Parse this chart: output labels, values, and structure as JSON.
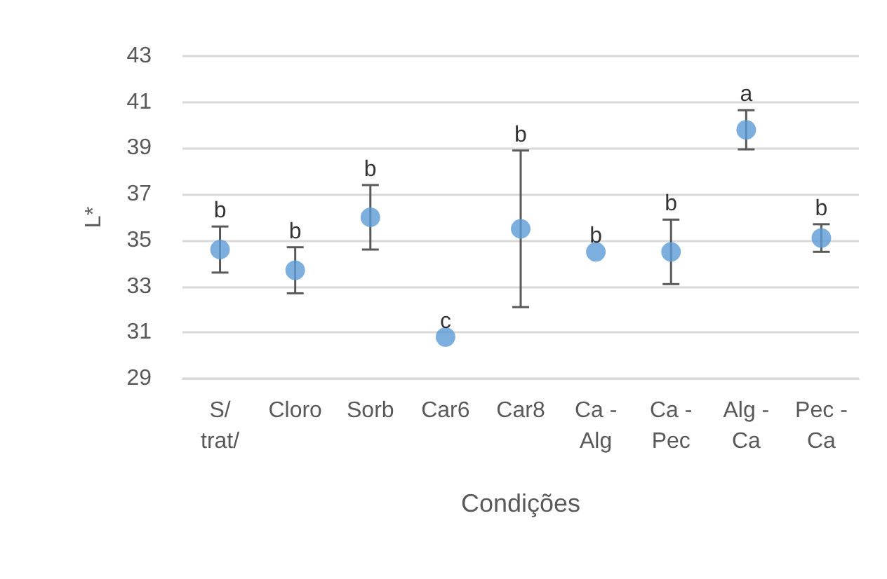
{
  "chart_data": {
    "type": "scatter",
    "xlabel": "Condições",
    "ylabel": "L*",
    "categories": [
      "S/ trat/",
      "Cloro",
      "Sorb",
      "Car6",
      "Car8",
      "Ca - Alg",
      "Ca - Pec",
      "Alg - Ca",
      "Pec - Ca"
    ],
    "values": [
      34.6,
      33.7,
      36.0,
      30.8,
      35.5,
      34.5,
      34.5,
      39.8,
      35.1
    ],
    "errors": [
      1.0,
      1.0,
      1.4,
      null,
      3.4,
      null,
      1.4,
      0.85,
      0.6
    ],
    "color": "#5b9bd5",
    "marker": "circle",
    "annotations": [
      "b",
      "b",
      "b",
      "c",
      "b",
      "b",
      "b",
      "a",
      "b"
    ],
    "ylim": [
      29,
      43
    ],
    "yticks": [
      29,
      31,
      33,
      35,
      37,
      39,
      41,
      43
    ],
    "grid": "y"
  }
}
